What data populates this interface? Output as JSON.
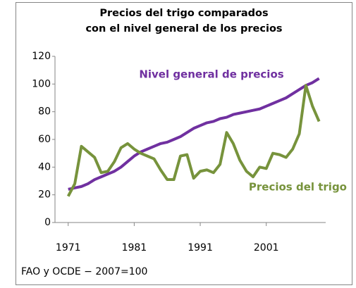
{
  "chart_data": {
    "type": "line",
    "title": [
      "Precios del trigo comparados",
      "con el nivel general de los precios"
    ],
    "note": "FAO y OCDE − 2007=100",
    "x": [
      1971,
      1972,
      1973,
      1974,
      1975,
      1976,
      1977,
      1978,
      1979,
      1980,
      1981,
      1982,
      1983,
      1984,
      1985,
      1986,
      1987,
      1988,
      1989,
      1990,
      1991,
      1992,
      1993,
      1994,
      1995,
      1996,
      1997,
      1998,
      1999,
      2000,
      2001,
      2002,
      2003,
      2004,
      2005,
      2006,
      2007,
      2008,
      2009
    ],
    "series": [
      {
        "name": "Nivel general de precios",
        "color": "#7030a0",
        "values": [
          24,
          25,
          26,
          28,
          31,
          33,
          35,
          37,
          40,
          44,
          48,
          51,
          53,
          55,
          57,
          58,
          60,
          62,
          65,
          68,
          70,
          72,
          73,
          75,
          76,
          78,
          79,
          80,
          81,
          82,
          84,
          86,
          88,
          90,
          93,
          96,
          99,
          101,
          104
        ]
      },
      {
        "name": "Precios del trigo",
        "color": "#77933c",
        "values": [
          19,
          28,
          55,
          51,
          47,
          36,
          37,
          44,
          54,
          57,
          53,
          50,
          48,
          46,
          38,
          31,
          31,
          48,
          49,
          32,
          37,
          38,
          36,
          42,
          65,
          57,
          45,
          37,
          33,
          40,
          39,
          50,
          49,
          47,
          53,
          64,
          99,
          84,
          73
        ]
      }
    ],
    "xlim": [
      1969,
      2010
    ],
    "xticks": [
      1971,
      1981,
      1991,
      2001
    ],
    "ylim": [
      0,
      120
    ],
    "yticks": [
      0,
      20,
      40,
      60,
      80,
      100,
      120
    ],
    "grid": false
  }
}
